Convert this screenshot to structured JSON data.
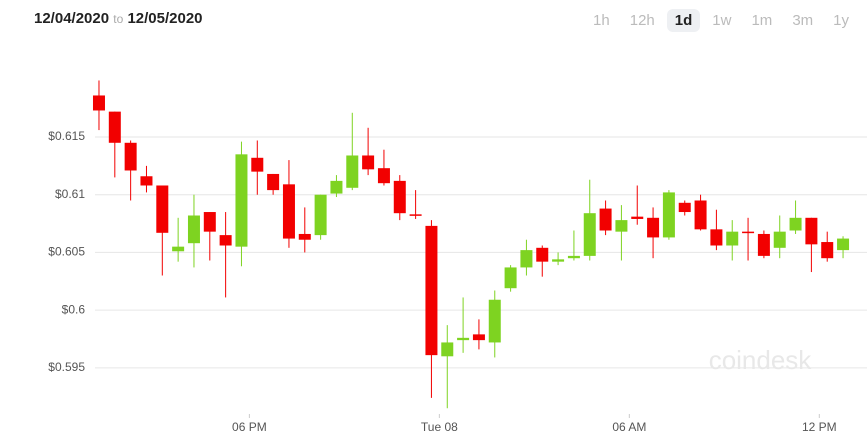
{
  "chart_data": {
    "type": "candlestick",
    "date_from": "12/04/2020",
    "date_sep": "to",
    "date_to": "12/05/2020",
    "ranges": [
      "1h",
      "12h",
      "1d",
      "1w",
      "1m",
      "3m",
      "1y"
    ],
    "active_range": "1d",
    "watermark": "coindesk",
    "up_color": "#7ed321",
    "down_color": "#f20000",
    "grid": true,
    "x": [
      0,
      1,
      2,
      3,
      4,
      5,
      6,
      7,
      8,
      9,
      10,
      11,
      12,
      13,
      14,
      15,
      16,
      17,
      18,
      19,
      20,
      21,
      22,
      23,
      24,
      25,
      26,
      27,
      28,
      29,
      30,
      31,
      32,
      33,
      34,
      35,
      36,
      37,
      38,
      39,
      40,
      41,
      42,
      43,
      44,
      45,
      46,
      47
    ],
    "open": [
      0.6186,
      0.6172,
      0.6145,
      0.6116,
      0.6108,
      0.6051,
      0.6058,
      0.6085,
      0.6065,
      0.6055,
      0.6132,
      0.6118,
      0.6109,
      0.6066,
      0.6065,
      0.6101,
      0.6106,
      0.6134,
      0.6123,
      0.6112,
      0.6083,
      0.6073,
      0.596,
      0.5974,
      0.5979,
      0.5972,
      0.6019,
      0.6037,
      0.6054,
      0.6042,
      0.6045,
      0.6047,
      0.6088,
      0.6068,
      0.6081,
      0.608,
      0.6063,
      0.6093,
      0.6095,
      0.607,
      0.6056,
      0.6068,
      0.6066,
      0.6054,
      0.6069,
      0.608,
      0.6059,
      0.6052
    ],
    "high": [
      0.6199,
      0.6172,
      0.6147,
      0.6125,
      0.6108,
      0.608,
      0.61,
      0.6085,
      0.6085,
      0.6146,
      0.6147,
      0.6118,
      0.613,
      0.6089,
      0.61,
      0.6117,
      0.6171,
      0.6158,
      0.6139,
      0.6117,
      0.6104,
      0.6078,
      0.5987,
      0.6011,
      0.5992,
      0.6017,
      0.6039,
      0.6061,
      0.6056,
      0.605,
      0.6069,
      0.6113,
      0.6095,
      0.6091,
      0.6108,
      0.6089,
      0.6104,
      0.6095,
      0.61,
      0.6087,
      0.6078,
      0.608,
      0.6069,
      0.6082,
      0.6095,
      0.608,
      0.6068,
      0.6064
    ],
    "low": [
      0.6156,
      0.6115,
      0.6095,
      0.6102,
      0.603,
      0.6042,
      0.6037,
      0.6043,
      0.6011,
      0.6038,
      0.61,
      0.61,
      0.6054,
      0.605,
      0.6061,
      0.6098,
      0.6104,
      0.6117,
      0.6108,
      0.6078,
      0.6079,
      0.5924,
      0.5915,
      0.5963,
      0.5966,
      0.5959,
      0.6016,
      0.603,
      0.6029,
      0.6039,
      0.6043,
      0.6043,
      0.6065,
      0.6043,
      0.6074,
      0.6045,
      0.6061,
      0.6082,
      0.6069,
      0.6052,
      0.6043,
      0.6043,
      0.6045,
      0.6045,
      0.6066,
      0.6033,
      0.6042,
      0.6045
    ],
    "close": [
      0.6173,
      0.6145,
      0.6121,
      0.6108,
      0.6067,
      0.6055,
      0.6082,
      0.6068,
      0.6056,
      0.6135,
      0.612,
      0.6104,
      0.6062,
      0.6061,
      0.61,
      0.6112,
      0.6134,
      0.6122,
      0.611,
      0.6084,
      0.6082,
      0.5961,
      0.5972,
      0.5976,
      0.5974,
      0.6009,
      0.6037,
      0.6052,
      0.6042,
      0.6044,
      0.6047,
      0.6084,
      0.6069,
      0.6078,
      0.6079,
      0.6063,
      0.6102,
      0.6085,
      0.607,
      0.6056,
      0.6068,
      0.6067,
      0.6047,
      0.6068,
      0.608,
      0.6057,
      0.6045,
      0.6062
    ],
    "xlim": [
      -2.5,
      48.5
    ],
    "xticks": [
      {
        "value": 9.5,
        "label": "06 PM"
      },
      {
        "value": 21.5,
        "label": "Tue 08"
      },
      {
        "value": 33.5,
        "label": "06 AM"
      },
      {
        "value": 45.5,
        "label": "12 PM"
      }
    ],
    "ylim": [
      0.591,
      0.6215
    ],
    "yticks": [
      {
        "value": 0.595,
        "label": "$0.595"
      },
      {
        "value": 0.6,
        "label": "$0.6"
      },
      {
        "value": 0.605,
        "label": "$0.605"
      },
      {
        "value": 0.61,
        "label": "$0.61"
      },
      {
        "value": 0.615,
        "label": "$0.615"
      }
    ]
  }
}
